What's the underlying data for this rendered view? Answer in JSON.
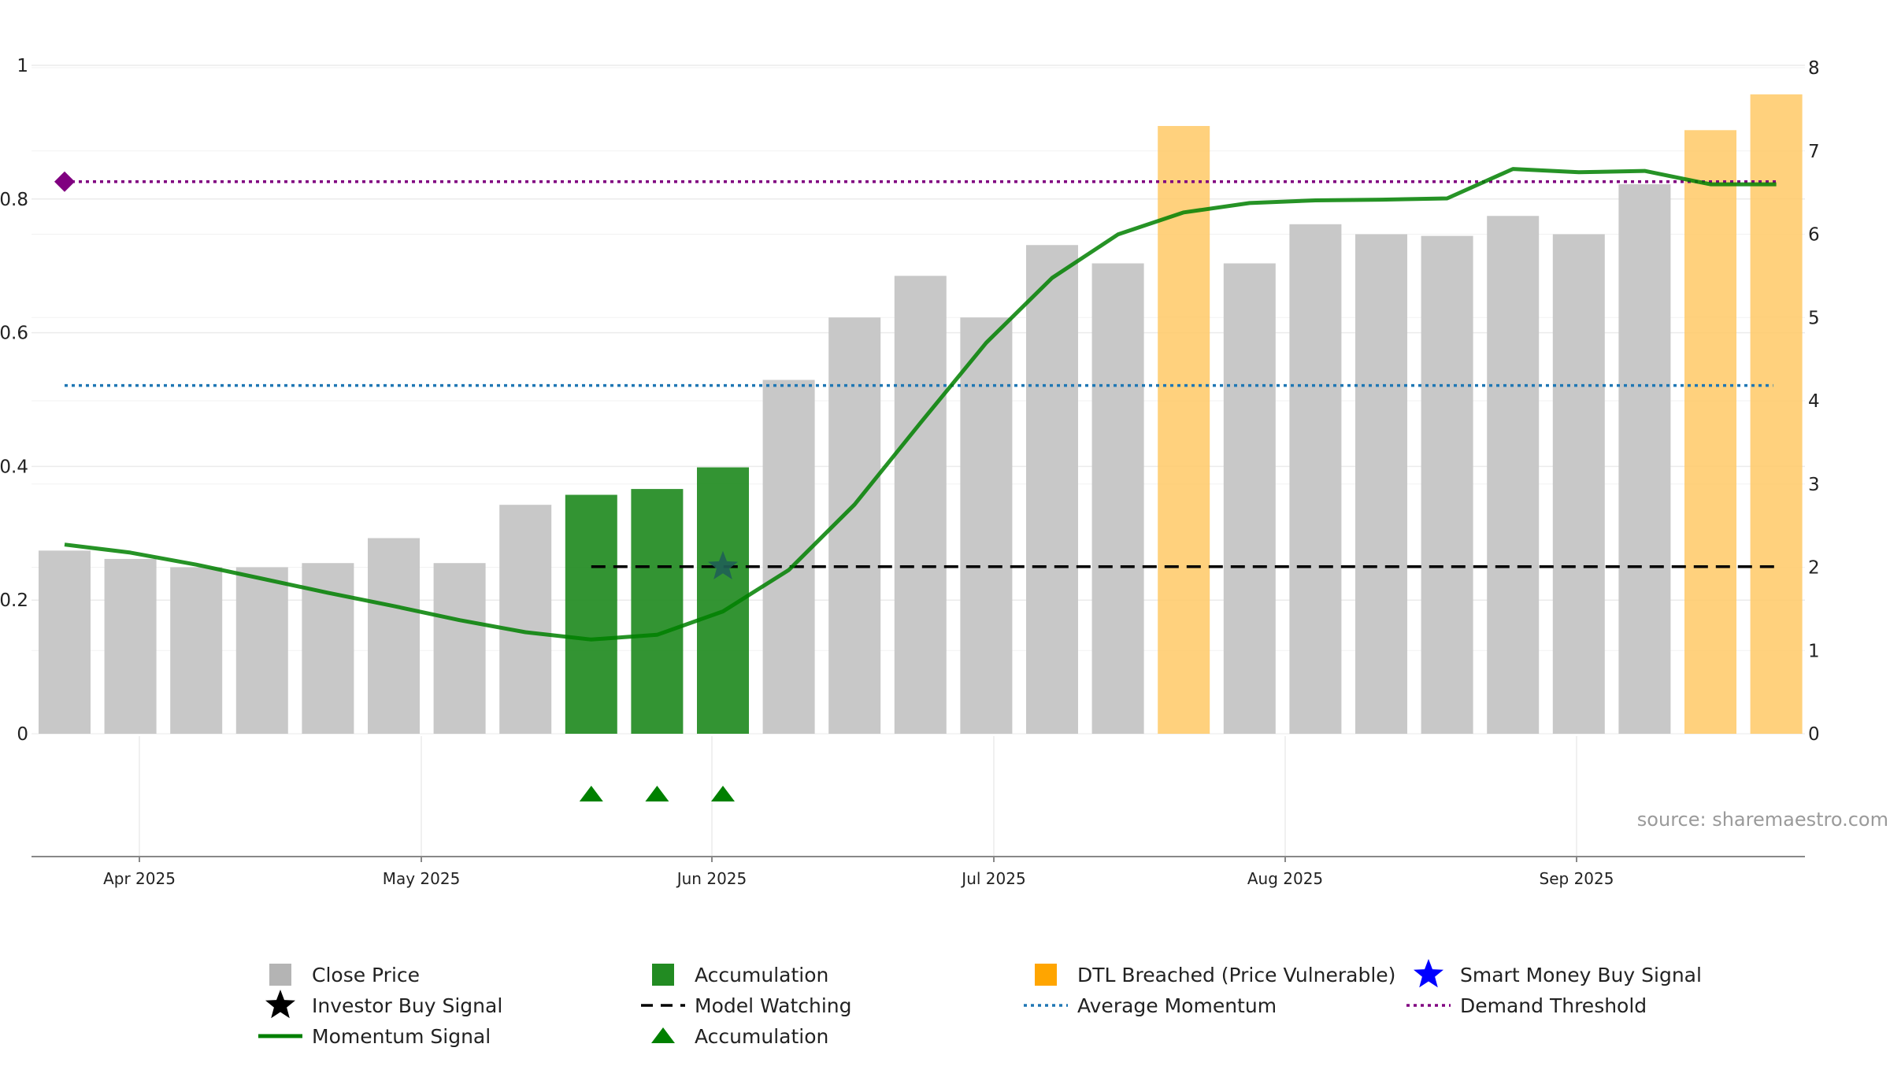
{
  "chart_data": {
    "type": "bar",
    "source": "source: sharemaestro.com",
    "x_ticks": [
      "Apr 2025",
      "May 2025",
      "Jun 2025",
      "Jul 2025",
      "Aug 2025",
      "Sep 2025"
    ],
    "y_left": {
      "range": [
        0,
        1
      ],
      "ticks": [
        "0",
        "0.2",
        "0.4",
        "0.6",
        "0.8",
        "1"
      ]
    },
    "y_right": {
      "range": [
        0,
        8
      ],
      "ticks": [
        "0",
        "1",
        "2",
        "3",
        "4",
        "5",
        "6",
        "7",
        "8"
      ]
    },
    "grid": true,
    "bars": [
      {
        "value": 2.2,
        "state": "normal"
      },
      {
        "value": 2.1,
        "state": "normal"
      },
      {
        "value": 2.0,
        "state": "normal"
      },
      {
        "value": 2.0,
        "state": "normal"
      },
      {
        "value": 2.05,
        "state": "normal"
      },
      {
        "value": 2.35,
        "state": "normal"
      },
      {
        "value": 2.05,
        "state": "normal"
      },
      {
        "value": 2.75,
        "state": "normal"
      },
      {
        "value": 2.87,
        "state": "accumulation"
      },
      {
        "value": 2.94,
        "state": "accumulation"
      },
      {
        "value": 3.2,
        "state": "accumulation"
      },
      {
        "value": 4.25,
        "state": "normal"
      },
      {
        "value": 5.0,
        "state": "normal"
      },
      {
        "value": 5.5,
        "state": "normal"
      },
      {
        "value": 5.0,
        "state": "normal"
      },
      {
        "value": 5.87,
        "state": "normal"
      },
      {
        "value": 5.65,
        "state": "normal"
      },
      {
        "value": 7.3,
        "state": "dtl"
      },
      {
        "value": 5.65,
        "state": "normal"
      },
      {
        "value": 6.12,
        "state": "normal"
      },
      {
        "value": 6.0,
        "state": "normal"
      },
      {
        "value": 5.98,
        "state": "normal"
      },
      {
        "value": 6.22,
        "state": "normal"
      },
      {
        "value": 6.0,
        "state": "normal"
      },
      {
        "value": 6.6,
        "state": "normal"
      },
      {
        "value": 7.25,
        "state": "dtl"
      },
      {
        "value": 7.68,
        "state": "dtl"
      }
    ],
    "momentum_signal": [
      0.283,
      0.271,
      0.253,
      0.232,
      0.211,
      0.191,
      0.17,
      0.152,
      0.141,
      0.148,
      0.183,
      0.245,
      0.343,
      0.465,
      0.585,
      0.682,
      0.747,
      0.78,
      0.794,
      0.798,
      0.799,
      0.801,
      0.845,
      0.84,
      0.842,
      0.822,
      0.822
    ],
    "average_momentum": 0.521,
    "demand_threshold": 0.826,
    "demand_threshold_marker_index": 0,
    "model_watching": {
      "value": 0.25,
      "start_index": 8,
      "end_index": 26
    },
    "investor_buy_signal": {
      "index": 10,
      "value": 0.25
    },
    "accumulation_markers": [
      8,
      9,
      10
    ],
    "colors": {
      "bar_normal": "#c8c8c8",
      "bar_accumulation": "#228b22",
      "bar_dtl": "#ffc966",
      "momentum": "#008000",
      "average_momentum": "#1f77b4",
      "demand_threshold": "#800080",
      "model_watching": "#000000",
      "investor_star": "#000000",
      "smart_money_star": "#0000ff",
      "accumulation_triangle": "#008000"
    },
    "legend": [
      {
        "label": "Close Price",
        "symbol": "square",
        "color": "#b4b4b4"
      },
      {
        "label": "Accumulation",
        "symbol": "square",
        "color": "#228b22"
      },
      {
        "label": "DTL Breached (Price Vulnerable)",
        "symbol": "square",
        "color": "#ffa500"
      },
      {
        "label": "Smart Money Buy Signal",
        "symbol": "star",
        "color": "#0000ff"
      },
      {
        "label": "Investor Buy Signal",
        "symbol": "star",
        "color": "#000000"
      },
      {
        "label": "Model Watching",
        "symbol": "dash",
        "color": "#000000"
      },
      {
        "label": "Average Momentum",
        "symbol": "dot",
        "color": "#1f77b4"
      },
      {
        "label": "Demand Threshold",
        "symbol": "dot",
        "color": "#800080"
      },
      {
        "label": "Momentum Signal",
        "symbol": "line",
        "color": "#008000"
      },
      {
        "label": "Accumulation",
        "symbol": "triangle",
        "color": "#008000"
      }
    ]
  }
}
